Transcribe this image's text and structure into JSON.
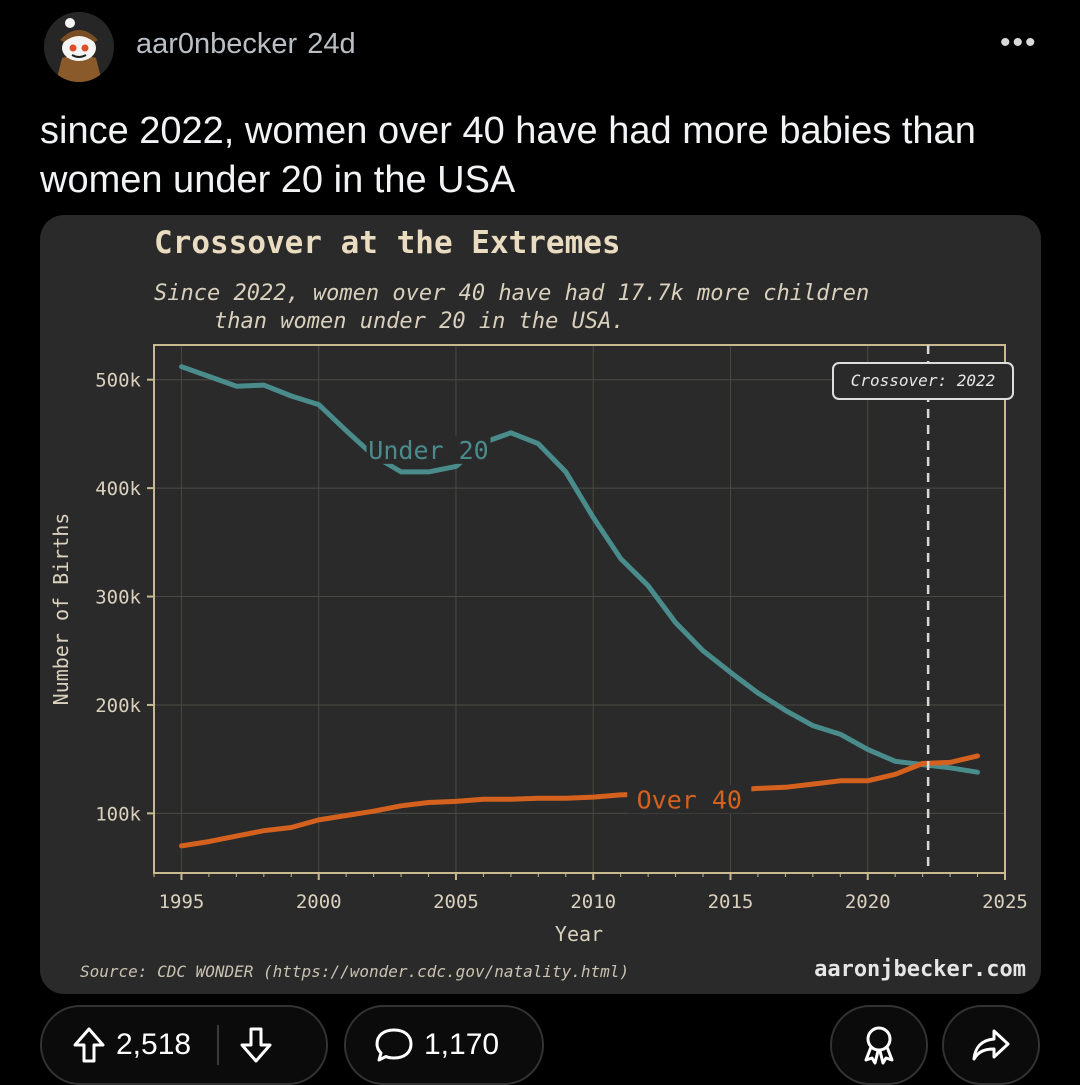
{
  "post": {
    "username": "aar0nbecker",
    "age": "24d",
    "more": "•••",
    "title": "since 2022, women over 40 have had more babies than women under 20 in the USA"
  },
  "actions": {
    "upvotes": "2,518",
    "comments": "1,170"
  },
  "colors": {
    "under20": "#4a8c8c",
    "over40": "#d4621e",
    "chart_bg": "#2a2a2a",
    "title": "#e9dcc0"
  },
  "chart_data": {
    "type": "line",
    "title": "Crossover at the Extremes",
    "subtitle_line1": "Since 2022, women over 40 have had 17.7k more children",
    "subtitle_line2": "than women under 20 in the USA.",
    "xlabel": "Year",
    "ylabel": "Number of Births",
    "xlim": [
      1994,
      2025
    ],
    "ylim": [
      45000,
      532000
    ],
    "x_ticks": [
      1995,
      2000,
      2005,
      2010,
      2015,
      2020,
      2025
    ],
    "y_ticks": [
      {
        "value": 100000,
        "label": "100k"
      },
      {
        "value": 200000,
        "label": "200k"
      },
      {
        "value": 300000,
        "label": "300k"
      },
      {
        "value": 400000,
        "label": "400k"
      },
      {
        "value": 500000,
        "label": "500k"
      }
    ],
    "grid": true,
    "crossover": {
      "year": 2022.2,
      "label": "Crossover: 2022"
    },
    "source": "Source: CDC WONDER (https://wonder.cdc.gov/natality.html)",
    "credit": "aaronjbecker.com",
    "series": [
      {
        "name": "Under 20",
        "x": [
          1995,
          1996,
          1997,
          1998,
          1999,
          2000,
          2001,
          2002,
          2003,
          2004,
          2005,
          2006,
          2007,
          2008,
          2009,
          2010,
          2011,
          2012,
          2013,
          2014,
          2015,
          2016,
          2017,
          2018,
          2019,
          2020,
          2021,
          2022,
          2023,
          2024
        ],
        "values": [
          512000,
          503000,
          494000,
          495000,
          485000,
          477000,
          453000,
          430000,
          415000,
          415000,
          420000,
          442000,
          451000,
          441000,
          415000,
          373000,
          335000,
          310000,
          276000,
          250000,
          230000,
          211000,
          195000,
          181000,
          173000,
          159000,
          148000,
          145000,
          142000,
          138000
        ]
      },
      {
        "name": "Over 40",
        "x": [
          1995,
          1996,
          1997,
          1998,
          1999,
          2000,
          2001,
          2002,
          2003,
          2004,
          2005,
          2006,
          2007,
          2008,
          2009,
          2010,
          2011,
          2012,
          2013,
          2014,
          2015,
          2016,
          2017,
          2018,
          2019,
          2020,
          2021,
          2022,
          2023,
          2024
        ],
        "values": [
          70000,
          74000,
          79000,
          84000,
          87000,
          94000,
          98000,
          102000,
          107000,
          110000,
          111000,
          113000,
          113000,
          114000,
          114000,
          115000,
          117000,
          118000,
          118000,
          119000,
          121000,
          123000,
          124000,
          127000,
          130000,
          130000,
          136000,
          146000,
          147000,
          153000
        ]
      }
    ]
  }
}
